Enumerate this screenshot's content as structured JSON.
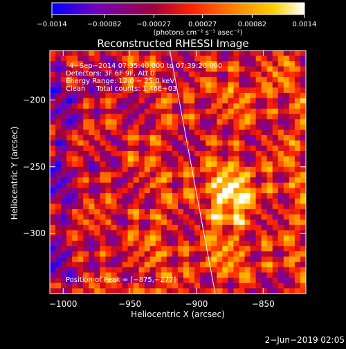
{
  "chart_data": {
    "type": "heatmap",
    "title": "Reconstructed RHESSI Image",
    "xlabel": "Heliocentric X (arcsec)",
    "ylabel": "Heliocentric Y (arcsec)",
    "xlim": [
      -1010,
      -818
    ],
    "ylim": [
      -345,
      -163
    ],
    "xticks": [
      -1000,
      -950,
      -900,
      -850
    ],
    "yticks": [
      -200,
      -250,
      -300
    ],
    "xtick_labels": [
      "−1000",
      "−950",
      "−900",
      "−850"
    ],
    "ytick_labels": [
      "−200",
      "−250",
      "−300"
    ],
    "colorbar": {
      "range": [
        -0.0014,
        0.0014
      ],
      "ticks": [
        -0.0014,
        -0.00082,
        -0.00027,
        0.00027,
        0.00082,
        0.0014
      ],
      "tick_labels": [
        "−0.0014",
        "−0.00082",
        "−0.00027",
        "0.00027",
        "0.00082",
        "0.0014"
      ],
      "label": "(photons cm⁻² s⁻¹ asec⁻²)",
      "colors": [
        "#0000ff",
        "#7000c0",
        "#a00040",
        "#ff2000",
        "#ff8000",
        "#ffd000",
        "#ffffff"
      ]
    },
    "annotations": [
      "4−Sep−2014 07:35:40.000 to 07:39:20.000",
      "Detectors: 3F 6F 9F, Att 0",
      "Energy Range: 12.0 − 25.0 keV",
      "Clean     Total counts: 1.46E+03"
    ],
    "peak_label": "Position of Peak = [−875,−277]",
    "peak": [
      -875,
      -277
    ],
    "limb": [
      [
        -920,
        -163
      ],
      [
        -886,
        -345
      ]
    ],
    "map_values": {
      "rows": 46,
      "cols": 46,
      "description_free_encoding": "row-major values computed by script"
    }
  },
  "footer": {
    "date": "2−Jun−2019 02:05"
  }
}
